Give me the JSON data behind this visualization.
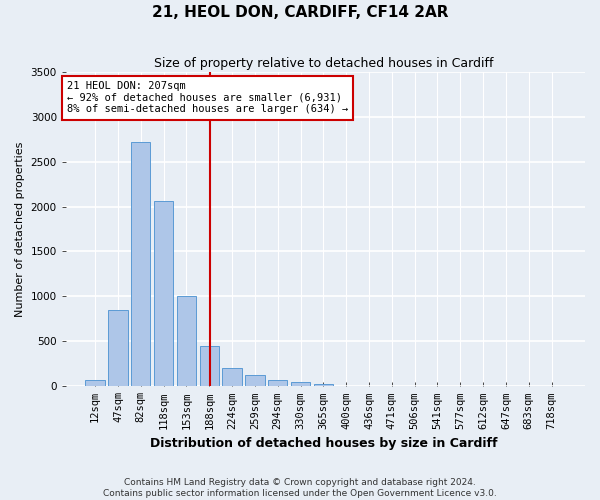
{
  "title": "21, HEOL DON, CARDIFF, CF14 2AR",
  "subtitle": "Size of property relative to detached houses in Cardiff",
  "xlabel": "Distribution of detached houses by size in Cardiff",
  "ylabel": "Number of detached properties",
  "categories": [
    "12sqm",
    "47sqm",
    "82sqm",
    "118sqm",
    "153sqm",
    "188sqm",
    "224sqm",
    "259sqm",
    "294sqm",
    "330sqm",
    "365sqm",
    "400sqm",
    "436sqm",
    "471sqm",
    "506sqm",
    "541sqm",
    "577sqm",
    "612sqm",
    "647sqm",
    "683sqm",
    "718sqm"
  ],
  "values": [
    75,
    850,
    2720,
    2060,
    1000,
    450,
    200,
    130,
    65,
    50,
    30,
    0,
    0,
    0,
    0,
    0,
    0,
    0,
    0,
    0,
    0
  ],
  "bar_color": "#aec6e8",
  "bar_edge_color": "#5b9bd5",
  "annotation_line1": "21 HEOL DON: 207sqm",
  "annotation_line2": "← 92% of detached houses are smaller (6,931)",
  "annotation_line3": "8% of semi-detached houses are larger (634) →",
  "annotation_box_facecolor": "#ffffff",
  "annotation_box_edgecolor": "#cc0000",
  "red_line_color": "#cc0000",
  "ylim": [
    0,
    3500
  ],
  "yticks": [
    0,
    500,
    1000,
    1500,
    2000,
    2500,
    3000,
    3500
  ],
  "footnote1": "Contains HM Land Registry data © Crown copyright and database right 2024.",
  "footnote2": "Contains public sector information licensed under the Open Government Licence v3.0.",
  "background_color": "#e8eef5",
  "grid_color": "#ffffff",
  "title_fontsize": 11,
  "subtitle_fontsize": 9,
  "xlabel_fontsize": 9,
  "ylabel_fontsize": 8,
  "tick_fontsize": 7.5,
  "annot_fontsize": 7.5,
  "footnote_fontsize": 6.5
}
